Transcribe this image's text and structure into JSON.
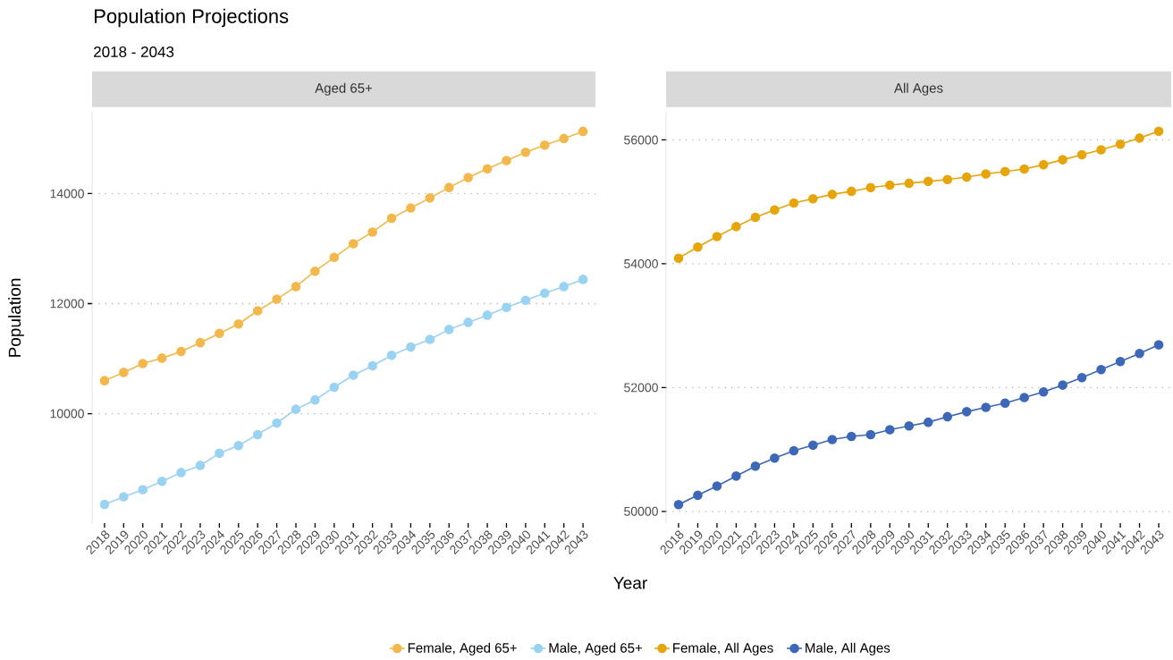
{
  "chart_data": [
    {
      "type": "line",
      "title": "Aged 65+",
      "xlabel": "Year",
      "ylabel": "Population",
      "annotations": [
        "Population Projections",
        "2018 - 2043"
      ],
      "categories": [
        "2018",
        "2019",
        "2020",
        "2021",
        "2022",
        "2023",
        "2024",
        "2025",
        "2026",
        "2027",
        "2028",
        "2029",
        "2030",
        "2031",
        "2032",
        "2033",
        "2034",
        "2035",
        "2036",
        "2037",
        "2038",
        "2039",
        "2040",
        "2041",
        "2042",
        "2043"
      ],
      "series": [
        {
          "name": "Female, Aged 65+",
          "color": "#f2b84b",
          "values": [
            10600,
            10750,
            10910,
            11010,
            11130,
            11290,
            11460,
            11630,
            11870,
            12080,
            12310,
            12590,
            12840,
            13090,
            13300,
            13550,
            13740,
            13920,
            14110,
            14290,
            14450,
            14600,
            14750,
            14880,
            15000,
            15130
          ]
        },
        {
          "name": "Male, Aged 65+",
          "color": "#9ad3f2",
          "values": [
            8350,
            8490,
            8620,
            8770,
            8930,
            9060,
            9280,
            9420,
            9620,
            9830,
            10080,
            10250,
            10480,
            10700,
            10870,
            11060,
            11210,
            11350,
            11530,
            11660,
            11790,
            11930,
            12060,
            12190,
            12310,
            12440
          ]
        }
      ],
      "yticks": [
        10000,
        12000,
        14000
      ],
      "grid": "y",
      "legend": "bottom",
      "ylim": [
        8010,
        15470
      ],
      "marker": "circle",
      "line_style": "solid"
    },
    {
      "type": "line",
      "title": "All Ages",
      "categories": [
        "2018",
        "2019",
        "2020",
        "2021",
        "2022",
        "2023",
        "2024",
        "2025",
        "2026",
        "2027",
        "2028",
        "2029",
        "2030",
        "2031",
        "2032",
        "2033",
        "2034",
        "2035",
        "2036",
        "2037",
        "2038",
        "2039",
        "2040",
        "2041",
        "2042",
        "2043"
      ],
      "series": [
        {
          "name": "Female, All Ages",
          "color": "#e6a50a",
          "values": [
            54090,
            54270,
            54440,
            54600,
            54750,
            54870,
            54980,
            55050,
            55120,
            55170,
            55230,
            55270,
            55300,
            55330,
            55360,
            55400,
            55450,
            55490,
            55530,
            55600,
            55680,
            55760,
            55840,
            55930,
            56030,
            56140
          ]
        },
        {
          "name": "Male, All Ages",
          "color": "#3d68b8",
          "values": [
            50110,
            50260,
            50410,
            50570,
            50730,
            50860,
            50980,
            51070,
            51160,
            51210,
            51240,
            51320,
            51380,
            51440,
            51530,
            51610,
            51680,
            51750,
            51840,
            51930,
            52040,
            52160,
            52290,
            52420,
            52550,
            52690
          ]
        }
      ],
      "yticks": [
        50000,
        52000,
        54000,
        56000
      ],
      "grid": "y",
      "legend": "bottom",
      "ylim": [
        49810,
        56440
      ],
      "marker": "circle",
      "line_style": "solid"
    }
  ]
}
